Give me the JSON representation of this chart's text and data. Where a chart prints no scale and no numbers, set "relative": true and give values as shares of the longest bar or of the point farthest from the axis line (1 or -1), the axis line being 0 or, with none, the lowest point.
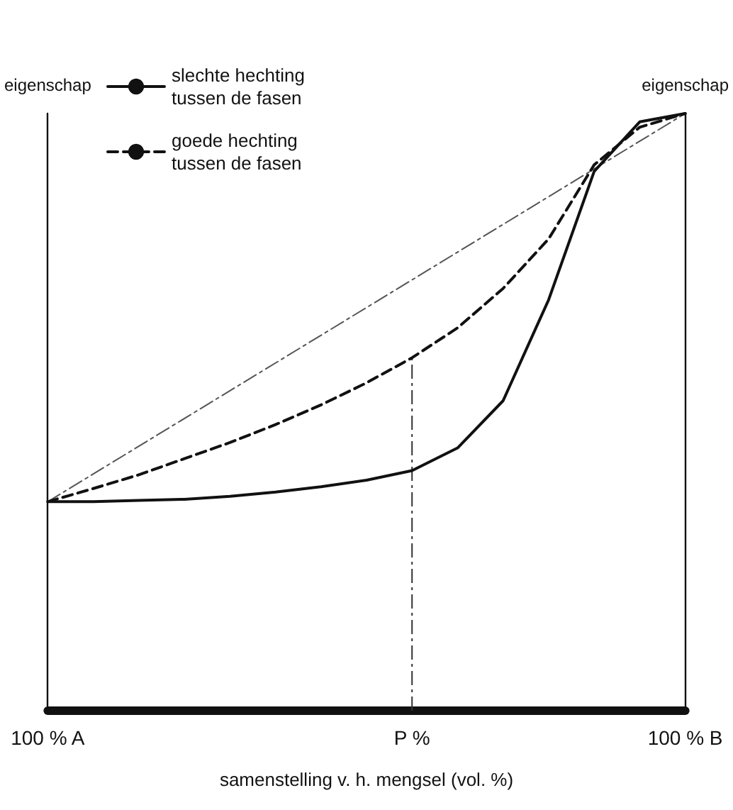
{
  "chart_data": {
    "type": "line",
    "relative": true,
    "xlabel": "samenstelling v. h. mengsel (vol. %)",
    "ylabel": "eigenschap",
    "y2label": "eigenschap",
    "categories": [
      "100 % A",
      null,
      null,
      null,
      null,
      null,
      null,
      null,
      "P %",
      null,
      null,
      null,
      null,
      null,
      "100 % B"
    ],
    "series": [
      {
        "name": "slechte hechting\ntussen de fasen",
        "color": "#111111",
        "line_style": "solid",
        "values": [
          0.35,
          0.35,
          0.352,
          0.354,
          0.359,
          0.366,
          0.375,
          0.386,
          0.402,
          0.44,
          0.519,
          0.688,
          0.903,
          0.986,
          1
        ]
      },
      {
        "name": "goede hechting\ntussen de fasen",
        "color": "#111111",
        "line_style": "dashed",
        "values": [
          0.35,
          0.372,
          0.395,
          0.422,
          0.449,
          0.479,
          0.512,
          0.549,
          0.591,
          0.641,
          0.707,
          0.79,
          0.914,
          0.977,
          1
        ]
      },
      {
        "color": "#555555",
        "line_style": "dotted",
        "values": [
          0.35,
          null,
          null,
          null,
          null,
          null,
          null,
          null,
          null,
          null,
          null,
          null,
          null,
          null,
          1
        ]
      }
    ],
    "ref_lines": [
      {
        "axis": "x",
        "value": "P %",
        "line_style": "dotted",
        "color": "#333333"
      }
    ],
    "legend": "top left",
    "grid": false,
    "marker": "none"
  }
}
